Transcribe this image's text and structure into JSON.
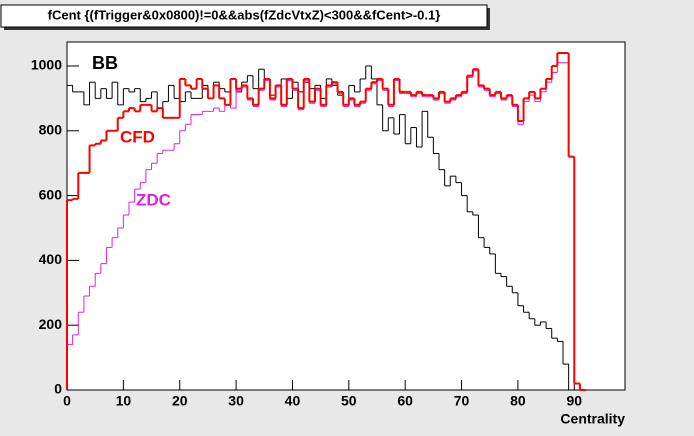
{
  "chart_data": {
    "type": "histogram",
    "title": "fCent {(fTrigger&0x0800)!=0&&abs(fZdcVtxZ)<300&&fCent>-0.1}",
    "x_label": "Centrality",
    "annotations": [
      {
        "text": "BB",
        "color": "#000000"
      },
      {
        "text": "CFD",
        "color": "#ff0000"
      },
      {
        "text": "ZDC",
        "color": "#e020e0"
      }
    ],
    "bins": [
      0,
      1,
      2,
      3,
      4,
      5,
      6,
      7,
      8,
      9,
      10,
      11,
      12,
      13,
      14,
      15,
      16,
      17,
      18,
      19,
      20,
      21,
      22,
      23,
      24,
      25,
      26,
      27,
      28,
      29,
      30,
      31,
      32,
      33,
      34,
      35,
      36,
      37,
      38,
      39,
      40,
      41,
      42,
      43,
      44,
      45,
      46,
      47,
      48,
      49,
      50,
      51,
      52,
      53,
      54,
      55,
      56,
      57,
      58,
      59,
      60,
      61,
      62,
      63,
      64,
      65,
      66,
      67,
      68,
      69,
      70,
      71,
      72,
      73,
      74,
      75,
      76,
      77,
      78,
      79,
      80,
      81,
      82,
      83,
      84,
      85,
      86,
      87,
      88,
      89,
      90,
      91,
      92
    ],
    "series": [
      {
        "name": "BB",
        "color": "#000000",
        "width": 1,
        "values": [
          940,
          920,
          920,
          880,
          950,
          900,
          930,
          900,
          950,
          880,
          930,
          920,
          930,
          890,
          900,
          920,
          870,
          890,
          940,
          900,
          890,
          920,
          900,
          900,
          940,
          900,
          950,
          930,
          920,
          960,
          920,
          950,
          970,
          930,
          990,
          960,
          910,
          940,
          960,
          900,
          950,
          920,
          950,
          930,
          940,
          900,
          960,
          940,
          910,
          880,
          940,
          920,
          960,
          1000,
          960,
          880,
          800,
          840,
          790,
          850,
          760,
          810,
          750,
          860,
          780,
          730,
          680,
          630,
          660,
          640,
          600,
          550,
          540,
          470,
          440,
          420,
          360,
          350,
          320,
          300,
          260,
          240,
          220,
          200,
          210,
          190,
          160,
          150,
          80,
          0,
          0,
          0
        ]
      },
      {
        "name": "ZDC",
        "color": "#e020e0",
        "width": 1,
        "values": [
          140,
          170,
          240,
          290,
          320,
          360,
          390,
          440,
          470,
          500,
          540,
          580,
          620,
          640,
          680,
          700,
          730,
          740,
          740,
          760,
          800,
          820,
          850,
          850,
          860,
          860,
          870,
          860,
          880,
          870,
          925,
          935,
          895,
          875,
          925,
          955,
          895,
          935,
          875,
          955,
          925,
          865,
          955,
          885,
          925,
          875,
          935,
          945,
          915,
          875,
          895,
          875,
          885,
          925,
          945,
          955,
          925,
          875,
          955,
          915,
          915,
          905,
          915,
          905,
          905,
          895,
          915,
          885,
          895,
          905,
          915,
          965,
          985,
          935,
          925,
          905,
          915,
          895,
          905,
          875,
          820,
          890,
          910,
          890,
          920,
          950,
          980,
          1010,
          1010,
          720,
          20,
          0
        ]
      },
      {
        "name": "CFD",
        "color": "#ff0000",
        "width": 2,
        "values": [
          586,
          590,
          670,
          670,
          755,
          760,
          770,
          800,
          800,
          840,
          860,
          870,
          860,
          880,
          880,
          860,
          870,
          840,
          840,
          840,
          960,
          940,
          930,
          960,
          930,
          900,
          940,
          900,
          880,
          960,
          930,
          940,
          900,
          880,
          930,
          960,
          900,
          940,
          880,
          960,
          930,
          870,
          960,
          890,
          930,
          880,
          940,
          950,
          920,
          880,
          900,
          880,
          890,
          930,
          950,
          960,
          930,
          880,
          960,
          920,
          920,
          910,
          920,
          910,
          910,
          900,
          920,
          890,
          900,
          910,
          920,
          970,
          990,
          940,
          930,
          910,
          920,
          900,
          910,
          880,
          830,
          900,
          920,
          900,
          930,
          960,
          1000,
          1040,
          1040,
          720,
          20,
          0
        ]
      }
    ],
    "xlim": [
      0,
      99
    ],
    "ylim": [
      0,
      1074
    ],
    "xticks": [
      0,
      10,
      20,
      30,
      40,
      50,
      60,
      70,
      80,
      90
    ],
    "yticks": [
      0,
      200,
      400,
      600,
      800,
      1000
    ]
  }
}
